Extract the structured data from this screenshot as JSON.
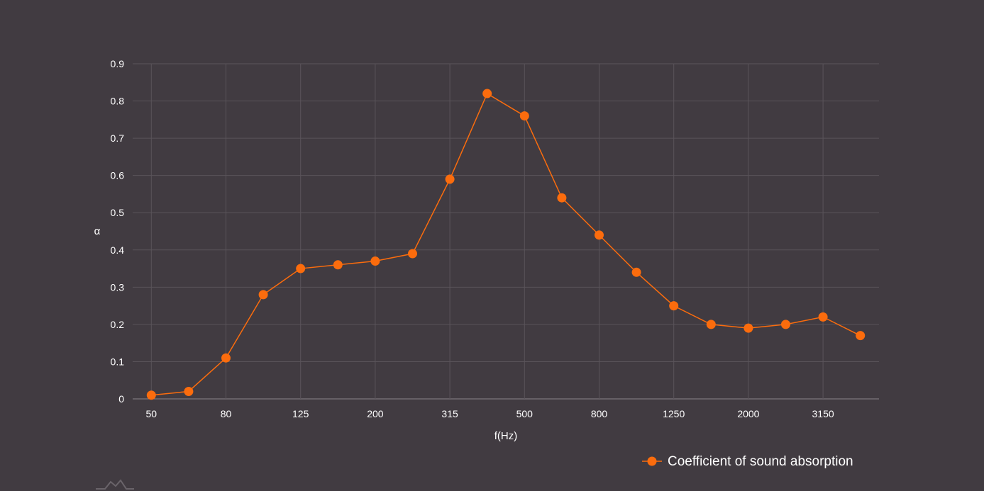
{
  "colors": {
    "background": "#413b41",
    "grid": "#5a545a",
    "series": "#fb6c0d",
    "text": "#ffffff"
  },
  "chart_data": {
    "type": "line",
    "title": "",
    "xlabel": "f(Hz)",
    "ylabel": "α",
    "x": [
      "50",
      "63",
      "80",
      "100",
      "125",
      "160",
      "200",
      "250",
      "315",
      "400",
      "500",
      "630",
      "800",
      "1000",
      "1250",
      "1600",
      "2000",
      "2500",
      "3150",
      "4000"
    ],
    "x_tick_labels": [
      "50",
      "80",
      "125",
      "200",
      "315",
      "500",
      "800",
      "1250",
      "2000",
      "3150"
    ],
    "y_tick_labels": [
      "0",
      "0.1",
      "0.2",
      "0.3",
      "0.4",
      "0.5",
      "0.6",
      "0.7",
      "0.8",
      "0.9"
    ],
    "ylim": [
      0,
      0.9
    ],
    "grid": true,
    "legend_position": "bottom-right",
    "series": [
      {
        "name": "Coefficient of sound absorption",
        "values": [
          0.01,
          0.02,
          0.11,
          0.28,
          0.35,
          0.36,
          0.37,
          0.39,
          0.59,
          0.82,
          0.76,
          0.54,
          0.44,
          0.34,
          0.25,
          0.2,
          0.19,
          0.2,
          0.22,
          0.17
        ]
      }
    ]
  }
}
